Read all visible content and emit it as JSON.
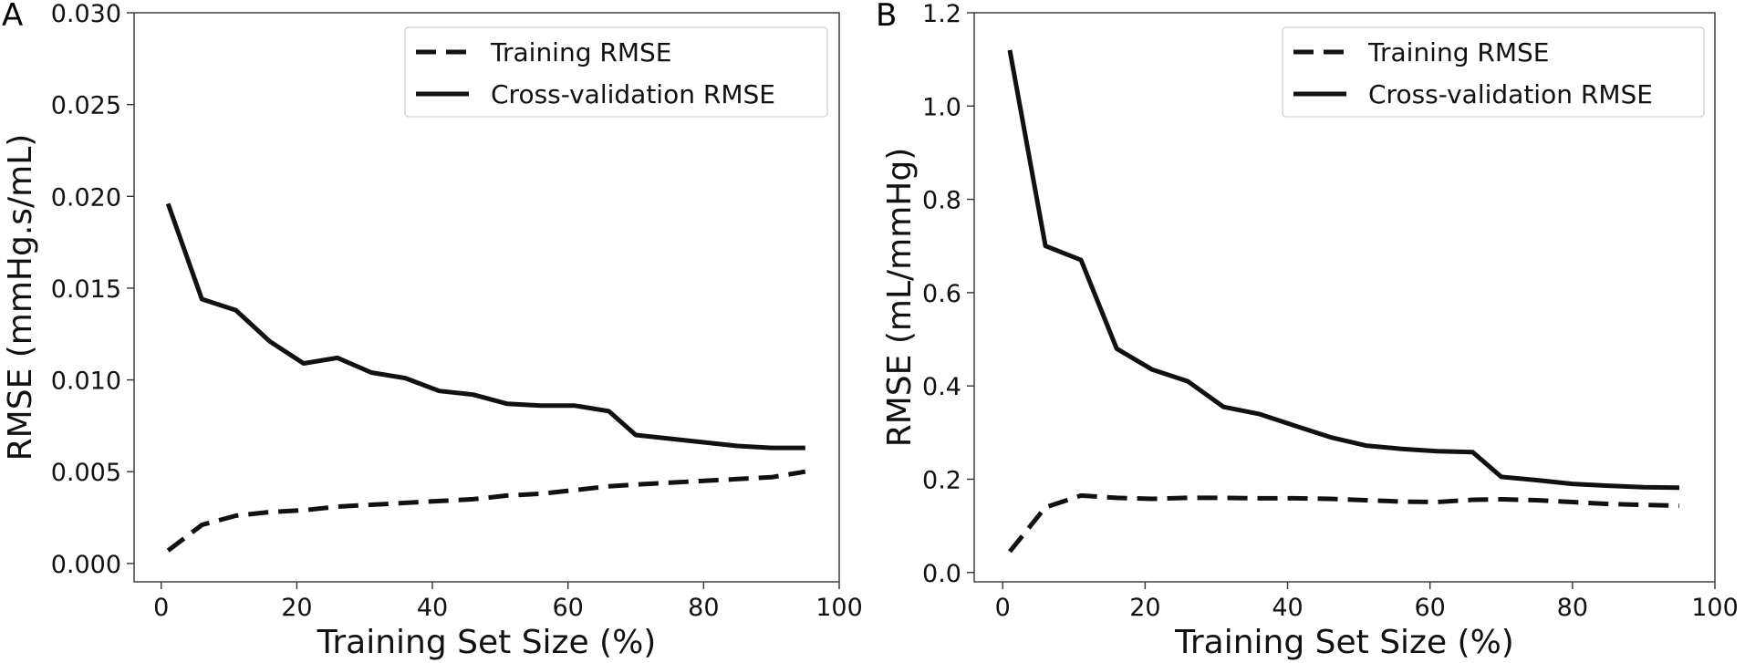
{
  "chart_data": [
    {
      "type": "line",
      "panel": "A",
      "title": "",
      "xlabel": "Training Set Size (%)",
      "ylabel": "RMSE (mmHg.s/mL)",
      "xlim": [
        -4,
        100
      ],
      "ylim": [
        -0.001,
        0.03
      ],
      "xticks": [
        0,
        20,
        40,
        60,
        80,
        100
      ],
      "xtick_labels": [
        "0",
        "20",
        "40",
        "60",
        "80",
        "100"
      ],
      "yticks": [
        0.0,
        0.005,
        0.01,
        0.015,
        0.02,
        0.025,
        0.03
      ],
      "ytick_labels": [
        "0.000",
        "0.005",
        "0.010",
        "0.015",
        "0.020",
        "0.025",
        "0.030"
      ],
      "grid": false,
      "legend_position": "top-right",
      "x": [
        1,
        6,
        11,
        16,
        21,
        26,
        31,
        36,
        41,
        46,
        51,
        56,
        61,
        66,
        70,
        75,
        80,
        85,
        90,
        95
      ],
      "series": [
        {
          "name": "Training RMSE",
          "style": "dashed",
          "values": [
            0.0007,
            0.0021,
            0.0026,
            0.0028,
            0.0029,
            0.0031,
            0.0032,
            0.0033,
            0.0034,
            0.0035,
            0.0037,
            0.0038,
            0.004,
            0.0042,
            0.0043,
            0.0044,
            0.0045,
            0.0046,
            0.0047,
            0.005
          ]
        },
        {
          "name": "Cross-validation RMSE",
          "style": "solid",
          "values": [
            0.0196,
            0.0144,
            0.0138,
            0.0121,
            0.0109,
            0.0112,
            0.0104,
            0.0101,
            0.0094,
            0.0092,
            0.0087,
            0.0086,
            0.0086,
            0.0083,
            0.007,
            0.0068,
            0.0066,
            0.0064,
            0.0063,
            0.0063
          ]
        }
      ]
    },
    {
      "type": "line",
      "panel": "B",
      "title": "",
      "xlabel": "Training Set Size (%)",
      "ylabel": "RMSE (mL/mmHg)",
      "xlim": [
        -4,
        100
      ],
      "ylim": [
        -0.02,
        1.2
      ],
      "xticks": [
        0,
        20,
        40,
        60,
        80,
        100
      ],
      "xtick_labels": [
        "0",
        "20",
        "40",
        "60",
        "80",
        "100"
      ],
      "yticks": [
        0.0,
        0.2,
        0.4,
        0.6,
        0.8,
        1.0,
        1.2
      ],
      "ytick_labels": [
        "0.0",
        "0.2",
        "0.4",
        "0.6",
        "0.8",
        "1.0",
        "1.2"
      ],
      "grid": false,
      "legend_position": "top-right",
      "x": [
        1,
        6,
        11,
        16,
        21,
        26,
        31,
        36,
        41,
        46,
        51,
        56,
        61,
        66,
        70,
        75,
        80,
        85,
        90,
        95
      ],
      "series": [
        {
          "name": "Training RMSE",
          "style": "dashed",
          "values": [
            0.045,
            0.14,
            0.165,
            0.16,
            0.158,
            0.16,
            0.16,
            0.159,
            0.159,
            0.158,
            0.155,
            0.152,
            0.151,
            0.156,
            0.157,
            0.155,
            0.151,
            0.147,
            0.145,
            0.143
          ]
        },
        {
          "name": "Cross-validation RMSE",
          "style": "solid",
          "values": [
            1.12,
            0.7,
            0.67,
            0.48,
            0.435,
            0.41,
            0.355,
            0.34,
            0.315,
            0.29,
            0.272,
            0.265,
            0.26,
            0.258,
            0.205,
            0.198,
            0.19,
            0.186,
            0.183,
            0.182
          ]
        }
      ]
    }
  ]
}
